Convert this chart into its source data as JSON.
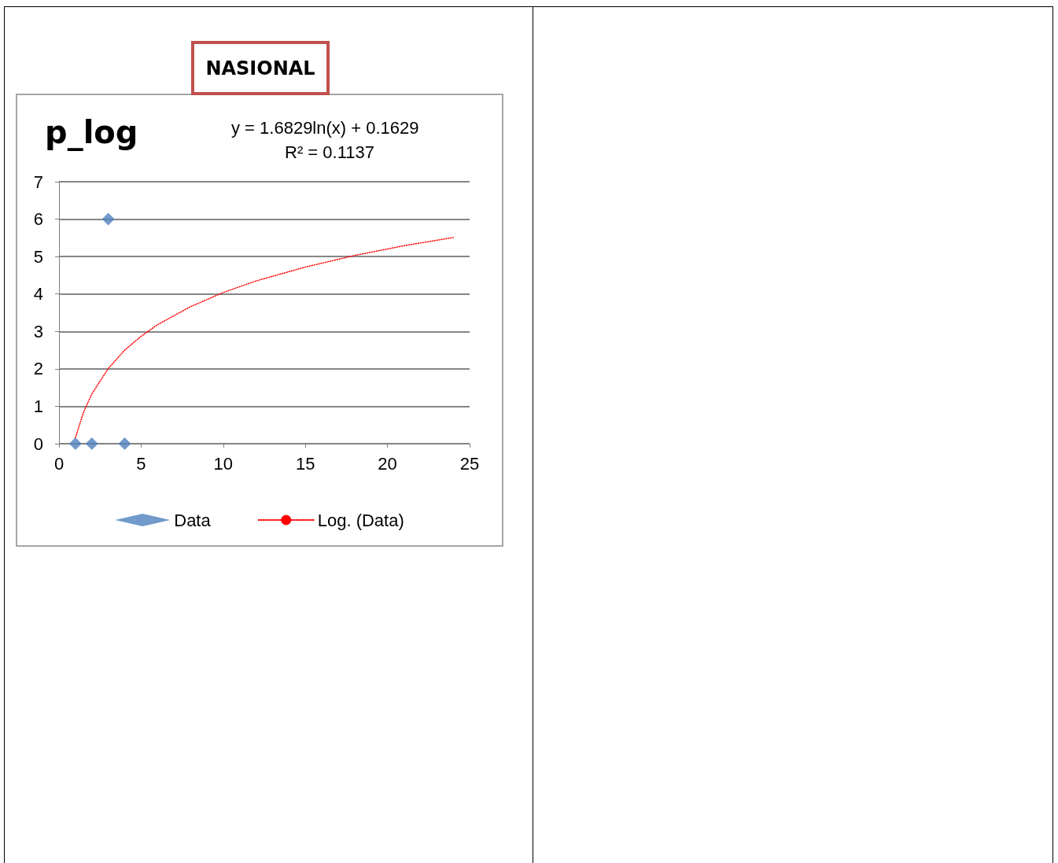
{
  "chart_data": {
    "type": "scatter",
    "title": "p_log",
    "annotations": [
      "NASIONAL",
      "y = 1.6829ln(x) + 0.1629",
      "R² = 0.1137"
    ],
    "series": [
      {
        "name": "Data",
        "color": "#4f81bd",
        "marker": "diamond",
        "x": [
          1,
          2,
          3,
          4
        ],
        "values": [
          0,
          0,
          6,
          0
        ]
      },
      {
        "type": "line",
        "name": "Log. (Data)",
        "color": "#ff0000",
        "marker": "none",
        "line_style": "dotted",
        "x": [
          1,
          1.5,
          2,
          3,
          4,
          5,
          6,
          8,
          10,
          12,
          15,
          18,
          21,
          24
        ],
        "values": [
          0.16,
          0.85,
          1.33,
          2.01,
          2.5,
          2.87,
          3.18,
          3.66,
          4.04,
          4.35,
          4.72,
          5.03,
          5.29,
          5.51
        ]
      }
    ],
    "xlim": [
      0,
      25
    ],
    "xticks": [
      0,
      5,
      10,
      15,
      20,
      25
    ],
    "ylim": [
      0,
      7
    ],
    "yticks": [
      0,
      1,
      2,
      3,
      4,
      5,
      6,
      7
    ],
    "grid": "y",
    "legend": "bottom"
  }
}
